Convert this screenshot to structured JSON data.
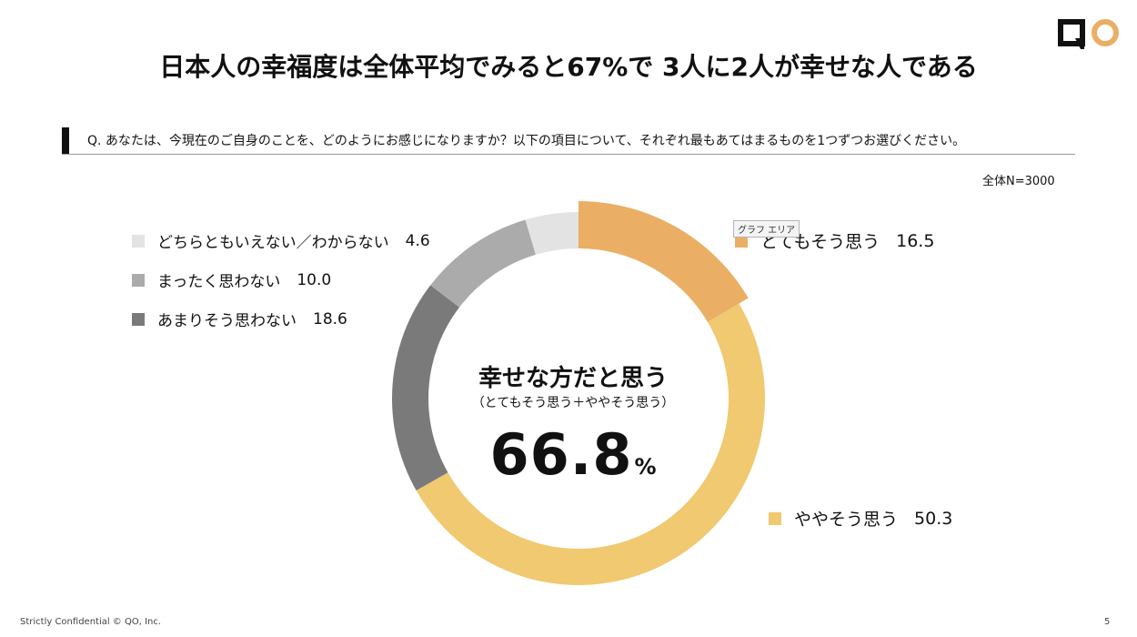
{
  "title": "日本人の幸福度は全体平均でみると67%で 3人に2人が幸せな人である",
  "question": "Q. あなたは、今現在のご自身のことを、どのようにお感じになりますか？以下の項目について、それぞれ最もあてはまるものを1つずつお選びください。",
  "sample_size": "全体N=3000",
  "tooltip": "グラフ エリア",
  "center": {
    "title": "幸せな方だと思う",
    "subtitle": "（とてもそう思う＋ややそう思う）",
    "value": "66.8",
    "unit": "%"
  },
  "footer": "Strictly Confidential © QO, Inc.",
  "page_number": "5",
  "chart_data": {
    "type": "pie",
    "variant": "donut",
    "unit": "%",
    "series": [
      {
        "name": "とてもそう思う",
        "value": 16.5,
        "display": "16.5",
        "color": "#eaaf64"
      },
      {
        "name": "ややそう思う",
        "value": 50.3,
        "display": "50.3",
        "color": "#f0c970"
      },
      {
        "name": "あまりそう思わない",
        "value": 18.6,
        "display": "18.6",
        "color": "#7a7a7a"
      },
      {
        "name": "まったく思わない",
        "value": 10.0,
        "display": "10.0",
        "color": "#ababab"
      },
      {
        "name": "どちらともいえない／わからない",
        "value": 4.6,
        "display": "4.6",
        "color": "#e3e3e3"
      }
    ]
  }
}
